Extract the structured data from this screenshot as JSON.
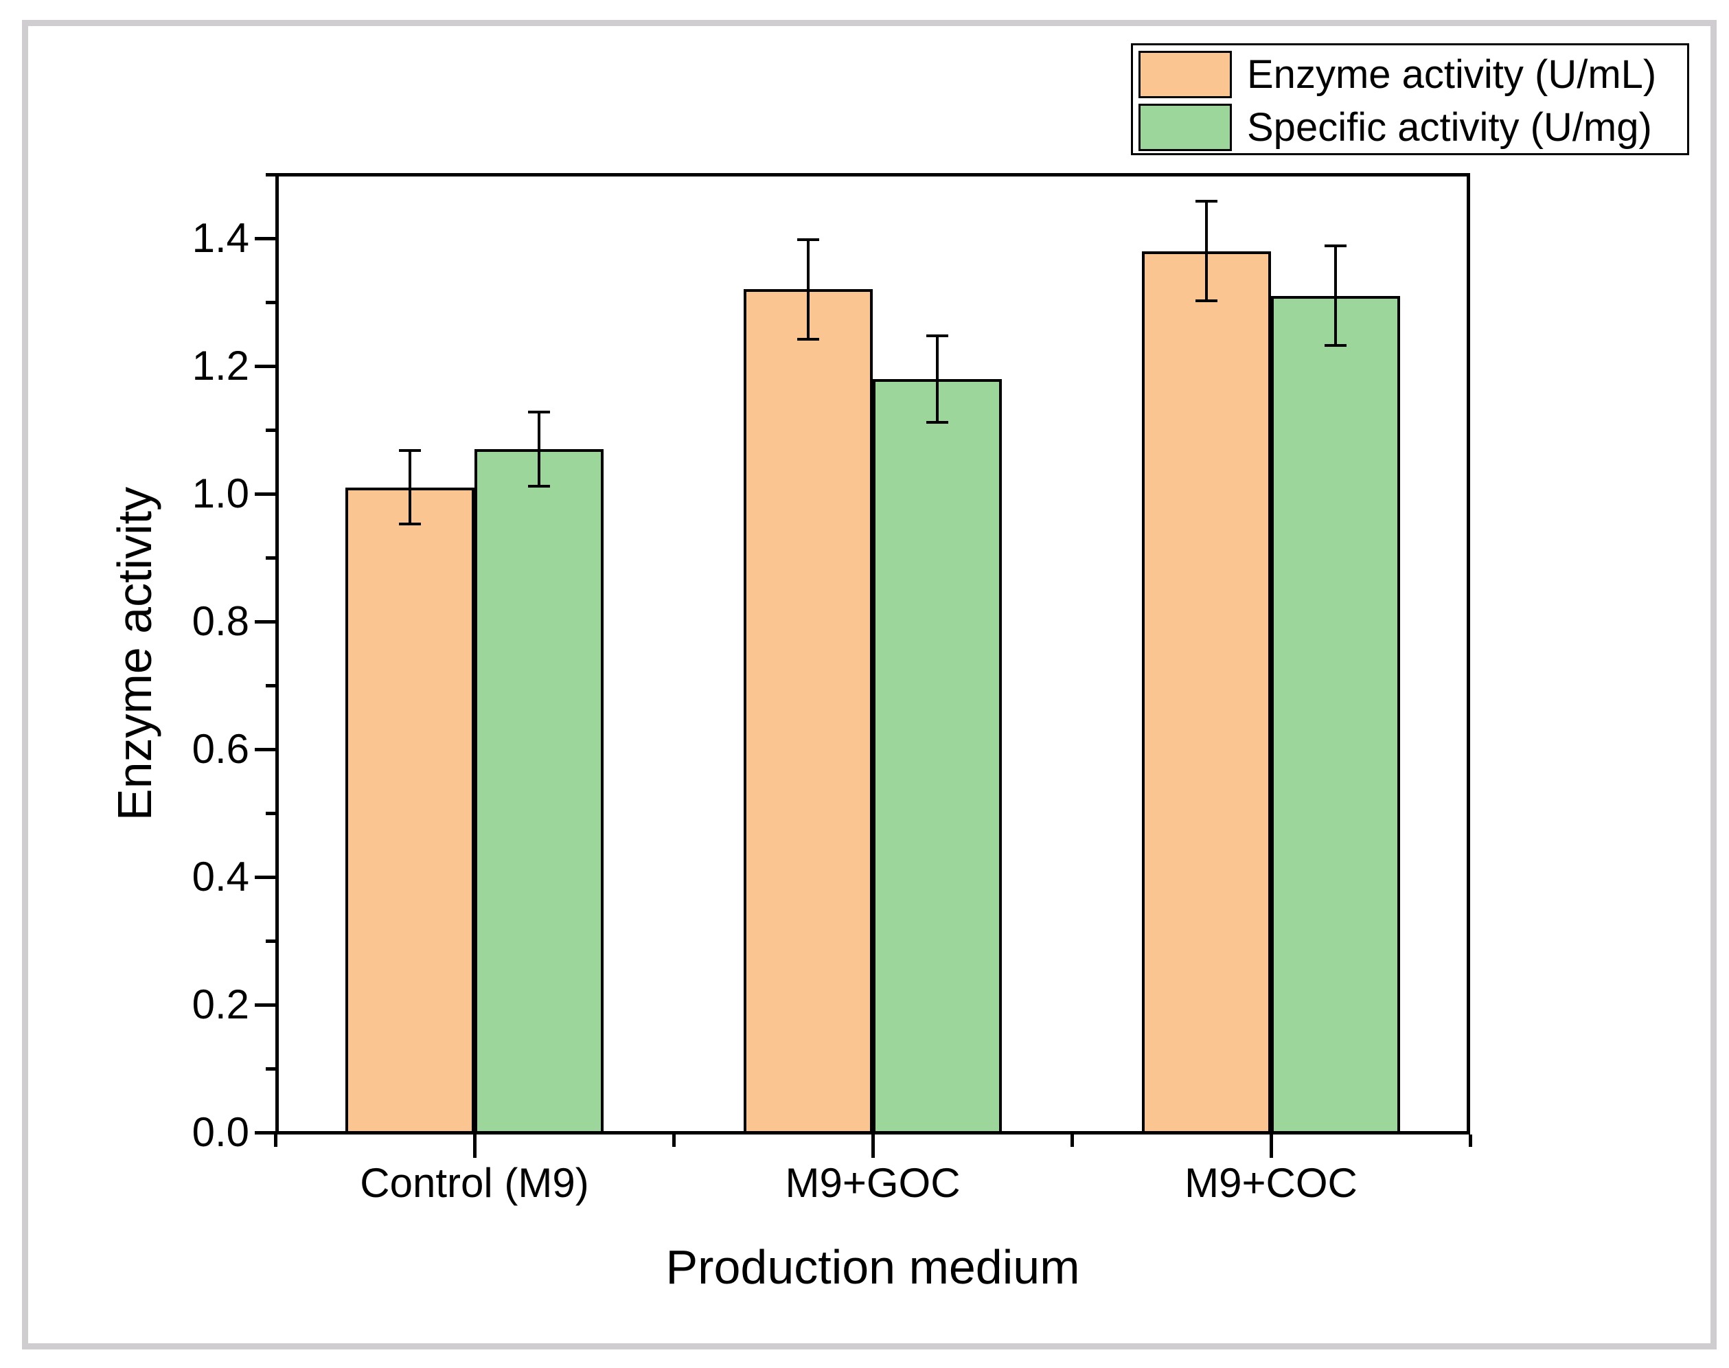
{
  "figure": {
    "background": "#FFFFFF",
    "outer_border_color": "#CFCDCF",
    "frame_color": "#000000"
  },
  "chart_data": {
    "type": "bar",
    "title": "",
    "categories": [
      "Control (M9)",
      "M9+GOC",
      "M9+COC"
    ],
    "series": [
      {
        "name": "Enzyme activity (U/mL)",
        "color": "#FBC591",
        "edge_color": "#000000",
        "values": [
          1.01,
          1.32,
          1.38
        ],
        "errors": [
          0.06,
          0.08,
          0.08
        ]
      },
      {
        "name": "Specific activity (U/mg)",
        "color": "#9CD69B",
        "edge_color": "#000000",
        "values": [
          1.07,
          1.18,
          1.31
        ],
        "errors": [
          0.06,
          0.07,
          0.08
        ]
      }
    ],
    "xlabel": "Production medium",
    "ylabel": "Enzyme activity",
    "ylim": [
      0,
      1.5
    ],
    "y_major_ticks": [
      0.0,
      0.2,
      0.4,
      0.6,
      0.8,
      1.0,
      1.2,
      1.4
    ],
    "y_tick_labels": [
      "0.0",
      "0.2",
      "0.4",
      "0.6",
      "0.8",
      "1.0",
      "1.2",
      "1.4"
    ],
    "y_minor_step": 0.1,
    "grid": false,
    "legend_position": "top-right",
    "error_bar_style": "plus-minus-caps"
  }
}
